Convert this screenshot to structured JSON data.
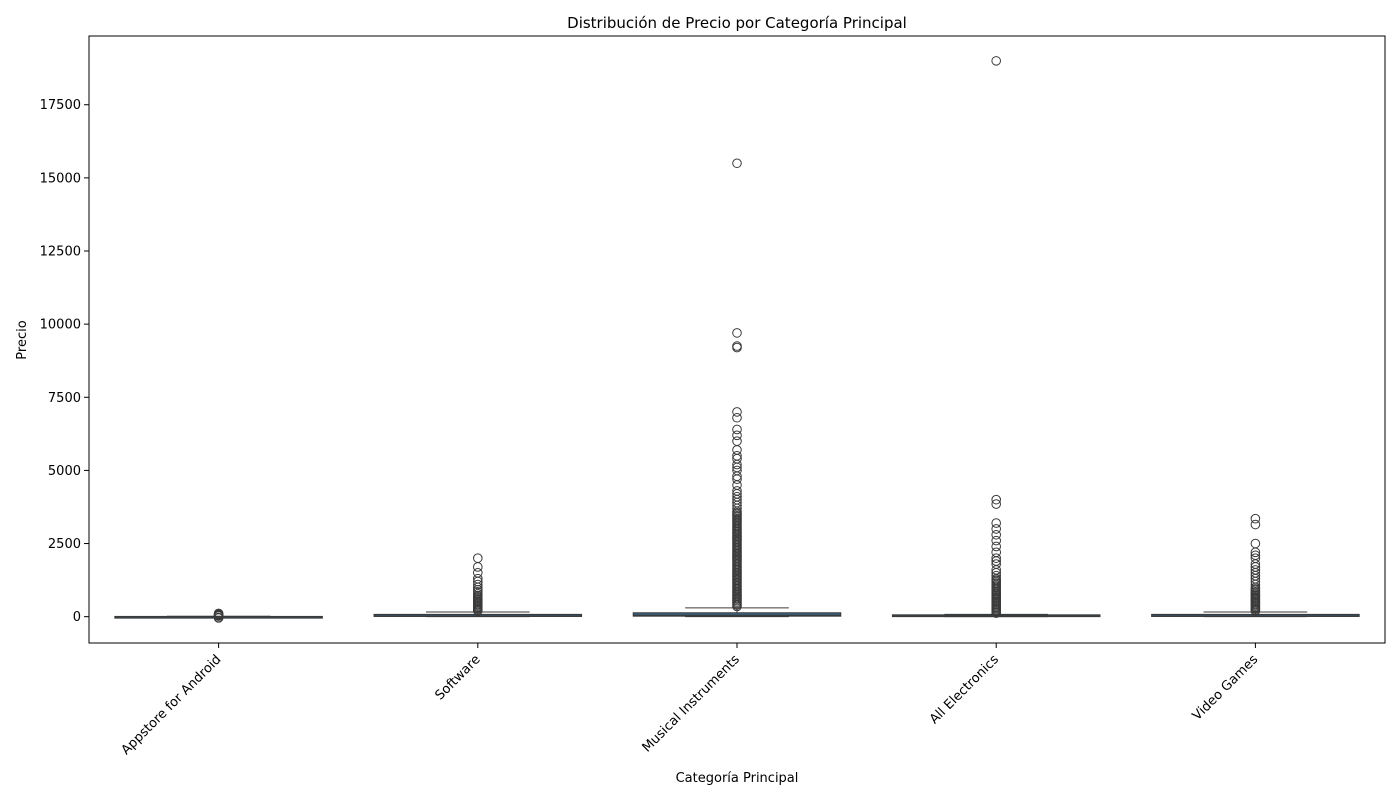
{
  "chart_data": {
    "type": "box",
    "title": "Distribución de Precio por Categoría Principal",
    "xlabel": "Categoría Principal",
    "ylabel": "Precio",
    "ylim": [
      -900,
      19850
    ],
    "yticks": [
      0,
      2500,
      5000,
      7500,
      10000,
      12500,
      15000,
      17500
    ],
    "grid": false,
    "legend": "none",
    "colors": {
      "box_fill": "#3274a1",
      "line": "#3a3a3a",
      "outlier_edge": "#3a3a3a"
    },
    "categories": [
      "Appstore for Android",
      "Software",
      "Musical Instruments",
      "All Electronics",
      "Video Games"
    ],
    "boxes": [
      {
        "category": "Appstore for Android",
        "q1": -10,
        "median": 0,
        "q3": 5,
        "whisker_low": -15,
        "whisker_high": 15,
        "outliers": [
          20,
          35,
          50,
          65,
          80,
          95,
          110,
          -30,
          -45
        ]
      },
      {
        "category": "Software",
        "q1": 10,
        "median": 25,
        "q3": 75,
        "whisker_low": 0,
        "whisker_high": 160,
        "outliers": [
          200,
          240,
          280,
          320,
          360,
          400,
          440,
          480,
          520,
          560,
          600,
          640,
          680,
          720,
          780,
          850,
          920,
          1000,
          1100,
          1200,
          1300,
          1500,
          1700,
          2000
        ]
      },
      {
        "category": "Musical Instruments",
        "q1": 20,
        "median": 55,
        "q3": 130,
        "whisker_low": 0,
        "whisker_high": 300,
        "outliers": [
          350,
          400,
          450,
          500,
          550,
          600,
          650,
          700,
          750,
          800,
          850,
          900,
          950,
          1000,
          1050,
          1100,
          1150,
          1200,
          1250,
          1300,
          1350,
          1400,
          1450,
          1500,
          1550,
          1600,
          1650,
          1700,
          1750,
          1800,
          1850,
          1900,
          1950,
          2000,
          2050,
          2100,
          2150,
          2200,
          2250,
          2300,
          2350,
          2400,
          2450,
          2500,
          2550,
          2600,
          2650,
          2700,
          2750,
          2800,
          2850,
          2900,
          2950,
          3000,
          3050,
          3100,
          3150,
          3200,
          3250,
          3300,
          3350,
          3400,
          3450,
          3500,
          3550,
          3600,
          3700,
          3800,
          3900,
          4000,
          4100,
          4200,
          4300,
          4500,
          4700,
          4800,
          5000,
          5100,
          5200,
          5400,
          5500,
          5700,
          6000,
          6200,
          6400,
          6800,
          7000,
          9200,
          9250,
          9700,
          15500
        ]
      },
      {
        "category": "All Electronics",
        "q1": 5,
        "median": 15,
        "q3": 60,
        "whisker_low": 0,
        "whisker_high": 80,
        "outliers": [
          120,
          160,
          200,
          240,
          280,
          320,
          360,
          400,
          440,
          480,
          520,
          560,
          600,
          640,
          680,
          720,
          760,
          800,
          850,
          900,
          950,
          1000,
          1050,
          1100,
          1150,
          1200,
          1250,
          1300,
          1400,
          1500,
          1600,
          1800,
          1900,
          2000,
          2200,
          2400,
          2600,
          2800,
          3000,
          3200,
          3850,
          4000,
          19000
        ]
      },
      {
        "category": "Video Games",
        "q1": 10,
        "median": 25,
        "q3": 75,
        "whisker_low": 0,
        "whisker_high": 160,
        "outliers": [
          200,
          240,
          280,
          320,
          360,
          400,
          440,
          480,
          520,
          560,
          600,
          640,
          680,
          720,
          760,
          800,
          850,
          900,
          950,
          1000,
          1100,
          1200,
          1300,
          1400,
          1500,
          1600,
          1700,
          1800,
          2000,
          2100,
          2200,
          2500,
          3150,
          3350
        ]
      }
    ]
  }
}
